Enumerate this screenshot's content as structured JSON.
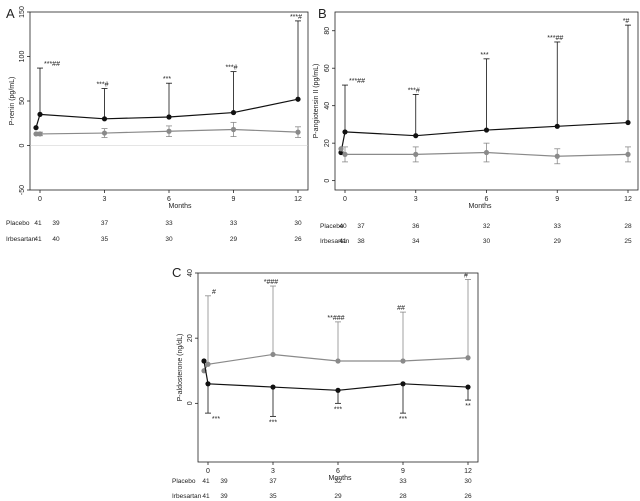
{
  "chart_data": [
    {
      "panel_label": "A",
      "type": "line",
      "ylabel": "P-renin (pg/mL)",
      "xlabel": "Months",
      "x": [
        0,
        3,
        6,
        9,
        12
      ],
      "xticks": [
        "0",
        "3",
        "6",
        "9",
        "12"
      ],
      "ylim": [
        -50,
        150
      ],
      "yticks": [
        "-50",
        "0",
        "50",
        "100",
        "150"
      ],
      "baseline_value": 0,
      "baseline_point": {
        "irbesartan": 20,
        "placebo": 13
      },
      "series": [
        {
          "name": "Irbesartan",
          "color": "#111111",
          "values": [
            35,
            30,
            32,
            37,
            52
          ],
          "upper": [
            87,
            64,
            70,
            83,
            140
          ]
        },
        {
          "name": "Placebo",
          "color": "#8a8a8a",
          "values": [
            13,
            14,
            16,
            18,
            15
          ],
          "upper": [
            2,
            5,
            6,
            8,
            6
          ],
          "lower": [
            2,
            5,
            6,
            8,
            6
          ]
        }
      ],
      "annotations": [
        "***##",
        "***#",
        "***",
        "***#",
        "***#"
      ],
      "counts": [
        {
          "label": "Placebo",
          "n": [
            "41",
            "39",
            "37",
            "33",
            "33",
            "30"
          ]
        },
        {
          "label": "Irbesartan",
          "n": [
            "41",
            "40",
            "35",
            "30",
            "29",
            "26"
          ]
        }
      ]
    },
    {
      "panel_label": "B",
      "type": "line",
      "ylabel": "P-angiotensin II (pg/mL)",
      "xlabel": "Months",
      "x": [
        0,
        3,
        6,
        9,
        12
      ],
      "xticks": [
        "0",
        "3",
        "6",
        "9",
        "12"
      ],
      "ylim": [
        -5,
        90
      ],
      "yticks": [
        "0",
        "20",
        "40",
        "60",
        "80"
      ],
      "baseline_point": {
        "irbesartan": 15,
        "placebo": 17
      },
      "series": [
        {
          "name": "Irbesartan",
          "color": "#111111",
          "values": [
            26,
            24,
            27,
            29,
            31
          ],
          "upper": [
            51,
            46,
            65,
            74,
            83
          ]
        },
        {
          "name": "Placebo",
          "color": "#8a8a8a",
          "values": [
            14,
            14,
            15,
            13,
            14
          ],
          "upper": [
            4,
            4,
            5,
            4,
            4
          ],
          "lower": [
            4,
            4,
            5,
            4,
            4
          ]
        }
      ],
      "annotations": [
        "***##",
        "***#",
        "***",
        "***##",
        "*#"
      ],
      "counts": [
        {
          "label": "Placebo",
          "n": [
            "40",
            "37",
            "36",
            "32",
            "33",
            "28"
          ]
        },
        {
          "label": "Irbesartan",
          "n": [
            "41",
            "38",
            "34",
            "30",
            "29",
            "25"
          ]
        }
      ]
    },
    {
      "panel_label": "C",
      "type": "line",
      "ylabel": "P-aldosterone (ng/dL)",
      "xlabel": "Months",
      "x": [
        0,
        3,
        6,
        9,
        12
      ],
      "xticks": [
        "0",
        "3",
        "6",
        "9",
        "12"
      ],
      "ylim": [
        -18,
        40
      ],
      "yticks": [
        "0",
        "20",
        "40"
      ],
      "baseline_point": {
        "irbesartan": 13,
        "placebo": 10
      },
      "series": [
        {
          "name": "Placebo",
          "color": "#8a8a8a",
          "values": [
            12,
            15,
            13,
            13,
            14
          ],
          "upper": [
            33,
            36,
            25,
            28,
            38
          ]
        },
        {
          "name": "Irbesartan",
          "color": "#111111",
          "values": [
            6,
            5,
            4,
            6,
            5
          ],
          "lower": [
            -3,
            -4,
            0,
            -3,
            1
          ]
        }
      ],
      "annotations_top": [
        "#",
        "*###",
        "**###",
        "##",
        "#"
      ],
      "annotations_bottom": [
        "***",
        "***",
        "***",
        "***",
        "**"
      ],
      "counts": [
        {
          "label": "Placebo",
          "n": [
            "41",
            "39",
            "37",
            "32",
            "33",
            "30"
          ]
        },
        {
          "label": "Irbesartan",
          "n": [
            "41",
            "39",
            "35",
            "29",
            "28",
            "26"
          ]
        }
      ]
    }
  ]
}
